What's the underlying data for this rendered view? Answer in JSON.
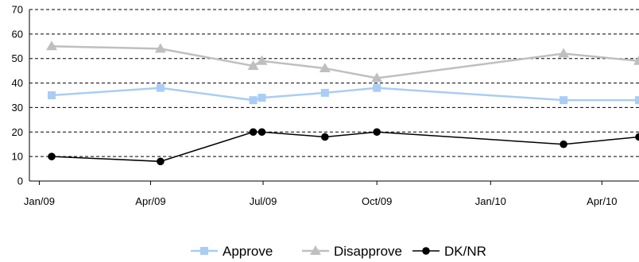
{
  "chart_data": {
    "type": "line",
    "title": "",
    "xlabel": "",
    "ylabel": "",
    "ylim": [
      0,
      70
    ],
    "y_ticks": [
      "0",
      "10",
      "20",
      "30",
      "40",
      "50",
      "60",
      "70"
    ],
    "x_ticks": [
      {
        "date": "2009-01-01",
        "label": "Jan/09"
      },
      {
        "date": "2009-04-01",
        "label": "Apr/09"
      },
      {
        "date": "2009-07-01",
        "label": "Jul/09"
      },
      {
        "date": "2009-10-01",
        "label": "Oct/09"
      },
      {
        "date": "2010-01-01",
        "label": "Jan/10"
      },
      {
        "date": "2010-04-01",
        "label": "Apr/10"
      }
    ],
    "xlim": [
      "2008-12-24",
      "2010-05-01"
    ],
    "x_dates": [
      "2009-01-11",
      "2009-04-09",
      "2009-06-23",
      "2009-06-30",
      "2009-08-20",
      "2009-10-01",
      "2010-03-01",
      "2010-05-01"
    ],
    "series": [
      {
        "name": "Approve",
        "color": "#a9cdf5",
        "marker": "square",
        "values": [
          35,
          38,
          33,
          34,
          36,
          38,
          33,
          33
        ]
      },
      {
        "name": "Disapprove",
        "color": "#bfbfbf",
        "marker": "triangle",
        "values": [
          55,
          54,
          47,
          49,
          46,
          42,
          52,
          49
        ]
      },
      {
        "name": "DK/NR",
        "color": "#000000",
        "marker": "circle",
        "values": [
          10,
          8,
          20,
          20,
          18,
          20,
          15,
          18
        ]
      }
    ],
    "grid": "horizontal-dashed",
    "legend_position": "bottom"
  }
}
